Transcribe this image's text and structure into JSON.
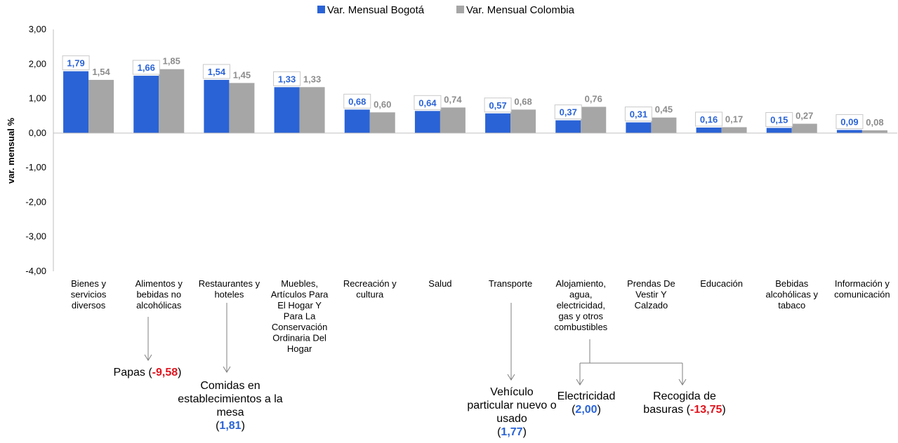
{
  "chart_data": {
    "type": "bar",
    "ylabel": "var. mensual %",
    "ylim": [
      -4,
      3
    ],
    "yticks": [
      "3,00",
      "2,00",
      "1,00",
      "0,00",
      "-1,00",
      "-2,00",
      "-3,00",
      "-4,00"
    ],
    "legend_position": "top",
    "categories": [
      [
        "Bienes y",
        "servicios",
        "diversos"
      ],
      [
        "Alimentos y",
        "bebidas no",
        "alcohólicas"
      ],
      [
        "Restaurantes y",
        "hoteles"
      ],
      [
        "Muebles,",
        "Artículos Para",
        "El Hogar Y",
        "Para La",
        "Conservación",
        "Ordinaria Del",
        "Hogar"
      ],
      [
        "Recreación y",
        "cultura"
      ],
      [
        "Salud"
      ],
      [
        "Transporte"
      ],
      [
        "Alojamiento,",
        "agua,",
        "electricidad,",
        "gas y otros",
        "combustibles"
      ],
      [
        "Prendas De",
        "Vestir Y",
        "Calzado"
      ],
      [
        "Educación"
      ],
      [
        "Bebidas",
        "alcohólicas y",
        "tabaco"
      ],
      [
        "Información y",
        "comunicación"
      ]
    ],
    "series": [
      {
        "name": "Var. Mensual Bogotá",
        "color": "#2a63d6",
        "values": [
          1.79,
          1.66,
          1.54,
          1.33,
          0.68,
          0.64,
          0.57,
          0.37,
          0.31,
          0.16,
          0.15,
          0.09
        ],
        "labels": [
          "1,79",
          "1,66",
          "1,54",
          "1,33",
          "0,68",
          "0,64",
          "0,57",
          "0,37",
          "0,31",
          "0,16",
          "0,15",
          "0,09"
        ]
      },
      {
        "name": "Var. Mensual Colombia",
        "color": "#a6a6a6",
        "values": [
          1.54,
          1.85,
          1.45,
          1.33,
          0.6,
          0.74,
          0.68,
          0.76,
          0.45,
          0.17,
          0.27,
          0.08
        ],
        "labels": [
          "1,54",
          "1,85",
          "1,45",
          "1,33",
          "0,60",
          "0,74",
          "0,68",
          "0,76",
          "0,45",
          "0,17",
          "0,27",
          "0,08"
        ]
      }
    ]
  },
  "annotations": {
    "papas": {
      "text": "Papas (",
      "value": "-9,58",
      "close": ")"
    },
    "comidas": {
      "text": "Comidas en establecimientos a la mesa",
      "open": "(",
      "value": "1,81",
      "close": ")"
    },
    "vehiculo": {
      "text": "Vehículo particular nuevo o usado",
      "open": "(",
      "value": "1,77",
      "close": ")"
    },
    "electricidad": {
      "text": "Electricidad",
      "open": "(",
      "value": "2,00",
      "close": ")"
    },
    "recogida_line1": "Recogida de",
    "recogida": {
      "text": "basuras (",
      "value": "-13,75",
      "close": ")"
    }
  }
}
